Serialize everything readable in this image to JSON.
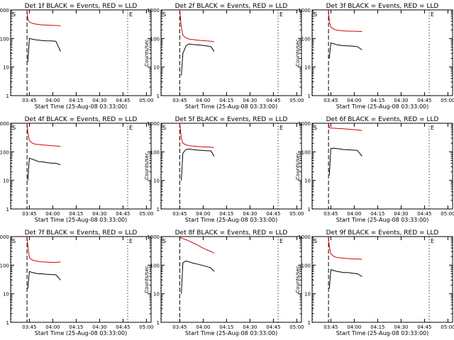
{
  "chart_data": [
    {
      "type": "line",
      "title": "Det 1f BLACK = Events, RED = LLD",
      "xlabel": "Start Time (25-Aug-08 03:33:00)",
      "ylabel": "Counts/sec",
      "yscale": "log",
      "ylim": [
        1,
        1000
      ],
      "xlim_minutes": [
        0,
        90
      ],
      "xtick_labels": [
        "03:45",
        "04:00",
        "04:15",
        "04:30",
        "04:45",
        "05:00"
      ],
      "ytick_labels": [
        "1",
        "10",
        "100",
        "1000"
      ],
      "grid": false,
      "markers": {
        "start": "S",
        "end": "E"
      },
      "x_minutes": [
        10.5,
        11,
        12,
        14,
        16,
        18,
        20,
        23,
        26,
        29,
        32
      ],
      "series": [
        {
          "name": "BLACK",
          "color": "#000000",
          "values": [
            null,
            15,
            100,
            95,
            90,
            88,
            85,
            83,
            82,
            80,
            35
          ]
        },
        {
          "name": "RED",
          "color": "#d40000",
          "values": [
            1000,
            480,
            380,
            340,
            320,
            310,
            300,
            295,
            290,
            285,
            280
          ]
        }
      ]
    },
    {
      "type": "line",
      "title": "Det 2f BLACK = Events, RED = LLD",
      "xlabel": "Start Time (25-Aug-08 03:33:00)",
      "ylabel": "Counts/sec",
      "yscale": "log",
      "ylim": [
        1,
        1000
      ],
      "xlim_minutes": [
        0,
        90
      ],
      "xtick_labels": [
        "03:45",
        "04:00",
        "04:15",
        "04:30",
        "04:45",
        "05:00"
      ],
      "ytick_labels": [
        "1",
        "10",
        "100",
        "1000"
      ],
      "grid": false,
      "markers": {
        "start": "S",
        "end": "E"
      },
      "x_minutes": [
        12,
        13,
        14,
        16,
        18,
        20,
        23,
        26,
        29,
        32,
        34
      ],
      "series": [
        {
          "name": "BLACK",
          "color": "#000000",
          "values": [
            null,
            5,
            30,
            55,
            65,
            62,
            60,
            58,
            55,
            52,
            35
          ]
        },
        {
          "name": "RED",
          "color": "#d40000",
          "values": [
            1000,
            250,
            130,
            105,
            95,
            92,
            88,
            85,
            82,
            80,
            78
          ]
        }
      ]
    },
    {
      "type": "line",
      "title": "Det 3f BLACK = Events, RED = LLD",
      "xlabel": "Start Time (25-Aug-08 03:33:00)",
      "ylabel": "Counts/sec",
      "yscale": "log",
      "ylim": [
        1,
        1000
      ],
      "xlim_minutes": [
        0,
        90
      ],
      "xtick_labels": [
        "03:45",
        "04:00",
        "04:15",
        "04:30",
        "04:45",
        "05:00"
      ],
      "ytick_labels": [
        "1",
        "10",
        "100",
        "1000"
      ],
      "grid": false,
      "markers": {
        "start": "S",
        "end": "E"
      },
      "x_minutes": [
        10.5,
        11,
        12,
        14,
        16,
        18,
        20,
        23,
        26,
        29,
        32
      ],
      "series": [
        {
          "name": "BLACK",
          "color": "#000000",
          "values": [
            null,
            20,
            70,
            65,
            60,
            58,
            56,
            55,
            54,
            52,
            40
          ]
        },
        {
          "name": "RED",
          "color": "#d40000",
          "values": [
            1000,
            400,
            250,
            210,
            195,
            190,
            185,
            180,
            180,
            178,
            175
          ]
        }
      ]
    },
    {
      "type": "line",
      "title": "Det 4f BLACK = Events, RED = LLD",
      "xlabel": "Start Time (25-Aug-08 03:33:00)",
      "ylabel": "Counts/sec",
      "yscale": "log",
      "ylim": [
        1,
        1000
      ],
      "xlim_minutes": [
        0,
        90
      ],
      "xtick_labels": [
        "03:45",
        "04:00",
        "04:15",
        "04:30",
        "04:45",
        "05:00"
      ],
      "ytick_labels": [
        "1",
        "10",
        "100",
        "1000"
      ],
      "grid": false,
      "markers": {
        "start": "S",
        "end": "E"
      },
      "x_minutes": [
        10.5,
        11,
        12,
        14,
        16,
        18,
        20,
        23,
        26,
        29,
        32
      ],
      "series": [
        {
          "name": "BLACK",
          "color": "#000000",
          "values": [
            null,
            10,
            60,
            55,
            50,
            45,
            45,
            42,
            40,
            40,
            35
          ]
        },
        {
          "name": "RED",
          "color": "#d40000",
          "values": [
            1000,
            500,
            250,
            200,
            185,
            180,
            175,
            170,
            165,
            160,
            155
          ]
        }
      ]
    },
    {
      "type": "line",
      "title": "Det 5f BLACK = Events, RED = LLD",
      "xlabel": "Start Time (25-Aug-08 03:33:00)",
      "ylabel": "Counts/sec",
      "yscale": "log",
      "ylim": [
        1,
        1000
      ],
      "xlim_minutes": [
        0,
        90
      ],
      "xtick_labels": [
        "03:45",
        "04:00",
        "04:15",
        "04:30",
        "04:45",
        "05:00"
      ],
      "ytick_labels": [
        "1",
        "10",
        "100",
        "1000"
      ],
      "grid": false,
      "markers": {
        "start": "S",
        "end": "E"
      },
      "x_minutes": [
        12,
        13,
        14,
        16,
        18,
        20,
        23,
        26,
        29,
        32,
        34
      ],
      "series": [
        {
          "name": "BLACK",
          "color": "#000000",
          "values": [
            null,
            10,
            90,
            120,
            125,
            120,
            115,
            112,
            110,
            108,
            70
          ]
        },
        {
          "name": "RED",
          "color": "#d40000",
          "values": [
            1000,
            300,
            200,
            175,
            165,
            160,
            155,
            150,
            148,
            145,
            140
          ]
        }
      ]
    },
    {
      "type": "line",
      "title": "Det 6f BLACK = Events, RED = LLD",
      "xlabel": "Start Time (25-Aug-08 03:33:00)",
      "ylabel": "Counts/sec",
      "yscale": "log",
      "ylim": [
        1,
        1000
      ],
      "xlim_minutes": [
        0,
        90
      ],
      "xtick_labels": [
        "03:45",
        "04:00",
        "04:15",
        "04:30",
        "04:45",
        "05:00"
      ],
      "ytick_labels": [
        "1",
        "10",
        "100",
        "1000"
      ],
      "grid": false,
      "markers": {
        "start": "S",
        "end": "E"
      },
      "x_minutes": [
        10.5,
        11,
        12,
        14,
        16,
        18,
        20,
        23,
        26,
        29,
        32
      ],
      "series": [
        {
          "name": "BLACK",
          "color": "#000000",
          "values": [
            null,
            15,
            130,
            135,
            130,
            125,
            120,
            118,
            115,
            112,
            70
          ]
        },
        {
          "name": "RED",
          "color": "#d40000",
          "values": [
            1000,
            700,
            680,
            670,
            660,
            650,
            640,
            620,
            600,
            580,
            560
          ]
        }
      ]
    },
    {
      "type": "line",
      "title": "Det 7f BLACK = Events, RED = LLD",
      "xlabel": "Start Time (25-Aug-08 03:33:00)",
      "ylabel": "Counts/sec",
      "yscale": "log",
      "ylim": [
        1,
        1000
      ],
      "xlim_minutes": [
        0,
        90
      ],
      "xtick_labels": [
        "03:45",
        "04:00",
        "04:15",
        "04:30",
        "04:45",
        "05:00"
      ],
      "ytick_labels": [
        "1",
        "10",
        "100",
        "1000"
      ],
      "grid": false,
      "markers": {
        "start": "S",
        "end": "E"
      },
      "x_minutes": [
        10.5,
        11,
        12,
        14,
        16,
        18,
        20,
        23,
        26,
        29,
        32
      ],
      "series": [
        {
          "name": "BLACK",
          "color": "#000000",
          "values": [
            null,
            15,
            60,
            55,
            52,
            50,
            50,
            48,
            47,
            46,
            30
          ]
        },
        {
          "name": "RED",
          "color": "#d40000",
          "values": [
            1000,
            500,
            180,
            150,
            140,
            135,
            130,
            128,
            125,
            125,
            130
          ]
        }
      ]
    },
    {
      "type": "line",
      "title": "Det 8f BLACK = Events, RED = LLD",
      "xlabel": "Start Time (25-Aug-08 03:33:00)",
      "ylabel": "Counts/sec",
      "yscale": "log",
      "ylim": [
        1,
        1000
      ],
      "xlim_minutes": [
        0,
        90
      ],
      "xtick_labels": [
        "03:45",
        "04:00",
        "04:15",
        "04:30",
        "04:45",
        "05:00"
      ],
      "ytick_labels": [
        "1",
        "10",
        "100",
        "1000"
      ],
      "grid": false,
      "markers": {
        "start": "S",
        "end": "E"
      },
      "x_minutes": [
        12,
        13,
        14,
        16,
        18,
        20,
        23,
        26,
        29,
        32,
        34
      ],
      "series": [
        {
          "name": "BLACK",
          "color": "#000000",
          "values": [
            null,
            10,
            120,
            140,
            130,
            120,
            110,
            100,
            90,
            80,
            60
          ]
        },
        {
          "name": "RED",
          "color": "#d40000",
          "values": [
            1000,
            900,
            850,
            780,
            700,
            620,
            520,
            420,
            350,
            300,
            260
          ]
        }
      ]
    },
    {
      "type": "line",
      "title": "Det 9f BLACK = Events, RED = LLD",
      "xlabel": "Start Time (25-Aug-08 03:33:00)",
      "ylabel": "Counts/sec",
      "yscale": "log",
      "ylim": [
        1,
        1000
      ],
      "xlim_minutes": [
        0,
        90
      ],
      "xtick_labels": [
        "03:45",
        "04:00",
        "04:15",
        "04:30",
        "04:45",
        "05:00"
      ],
      "ytick_labels": [
        "1",
        "10",
        "100",
        "1000"
      ],
      "grid": false,
      "markers": {
        "start": "S",
        "end": "E"
      },
      "x_minutes": [
        10.5,
        11,
        12,
        14,
        16,
        18,
        20,
        23,
        26,
        29,
        32
      ],
      "series": [
        {
          "name": "BLACK",
          "color": "#000000",
          "values": [
            null,
            15,
            70,
            65,
            60,
            58,
            55,
            55,
            52,
            50,
            40
          ]
        },
        {
          "name": "RED",
          "color": "#d40000",
          "values": [
            1000,
            450,
            250,
            200,
            185,
            180,
            175,
            170,
            165,
            165,
            160
          ]
        }
      ]
    }
  ]
}
